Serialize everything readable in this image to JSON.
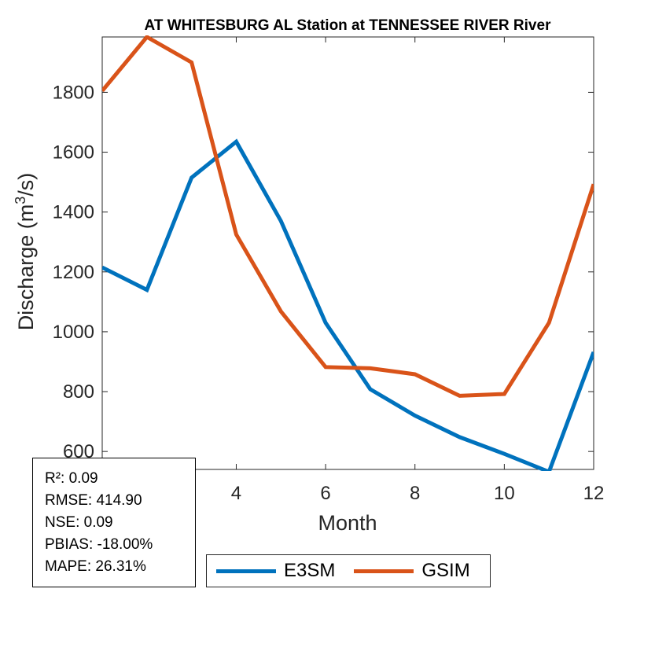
{
  "chart_data": {
    "type": "line",
    "title": "AT WHITESBURG AL  Station at  TENNESSEE RIVER  River",
    "xlabel": "Month",
    "ylabel": "Discharge (m³/s)",
    "ylabel_parts": {
      "base": "Discharge (m",
      "sup": "3",
      "tail": "/s)"
    },
    "xlim": [
      1,
      12
    ],
    "ylim": [
      540,
      1985
    ],
    "x_ticks": [
      4,
      6,
      8,
      10,
      12
    ],
    "y_ticks": [
      600,
      800,
      1000,
      1200,
      1400,
      1600,
      1800
    ],
    "grid": false,
    "legend_position": "bottom",
    "x": [
      1,
      2,
      3,
      4,
      5,
      6,
      7,
      8,
      9,
      10,
      11,
      12
    ],
    "series": [
      {
        "name": "E3SM",
        "color": "#0072BD",
        "values": [
          1215,
          1140,
          1515,
          1635,
          1370,
          1030,
          808,
          720,
          648,
          592,
          532,
          932
        ]
      },
      {
        "name": "GSIM",
        "color": "#D95319",
        "values": [
          1805,
          1985,
          1900,
          1325,
          1068,
          882,
          878,
          858,
          786,
          792,
          1030,
          1493
        ]
      }
    ]
  },
  "stats": [
    "R²: 0.09",
    "RMSE: 414.90",
    "NSE: 0.09",
    "PBIAS: -18.00%",
    "MAPE: 26.31%"
  ]
}
